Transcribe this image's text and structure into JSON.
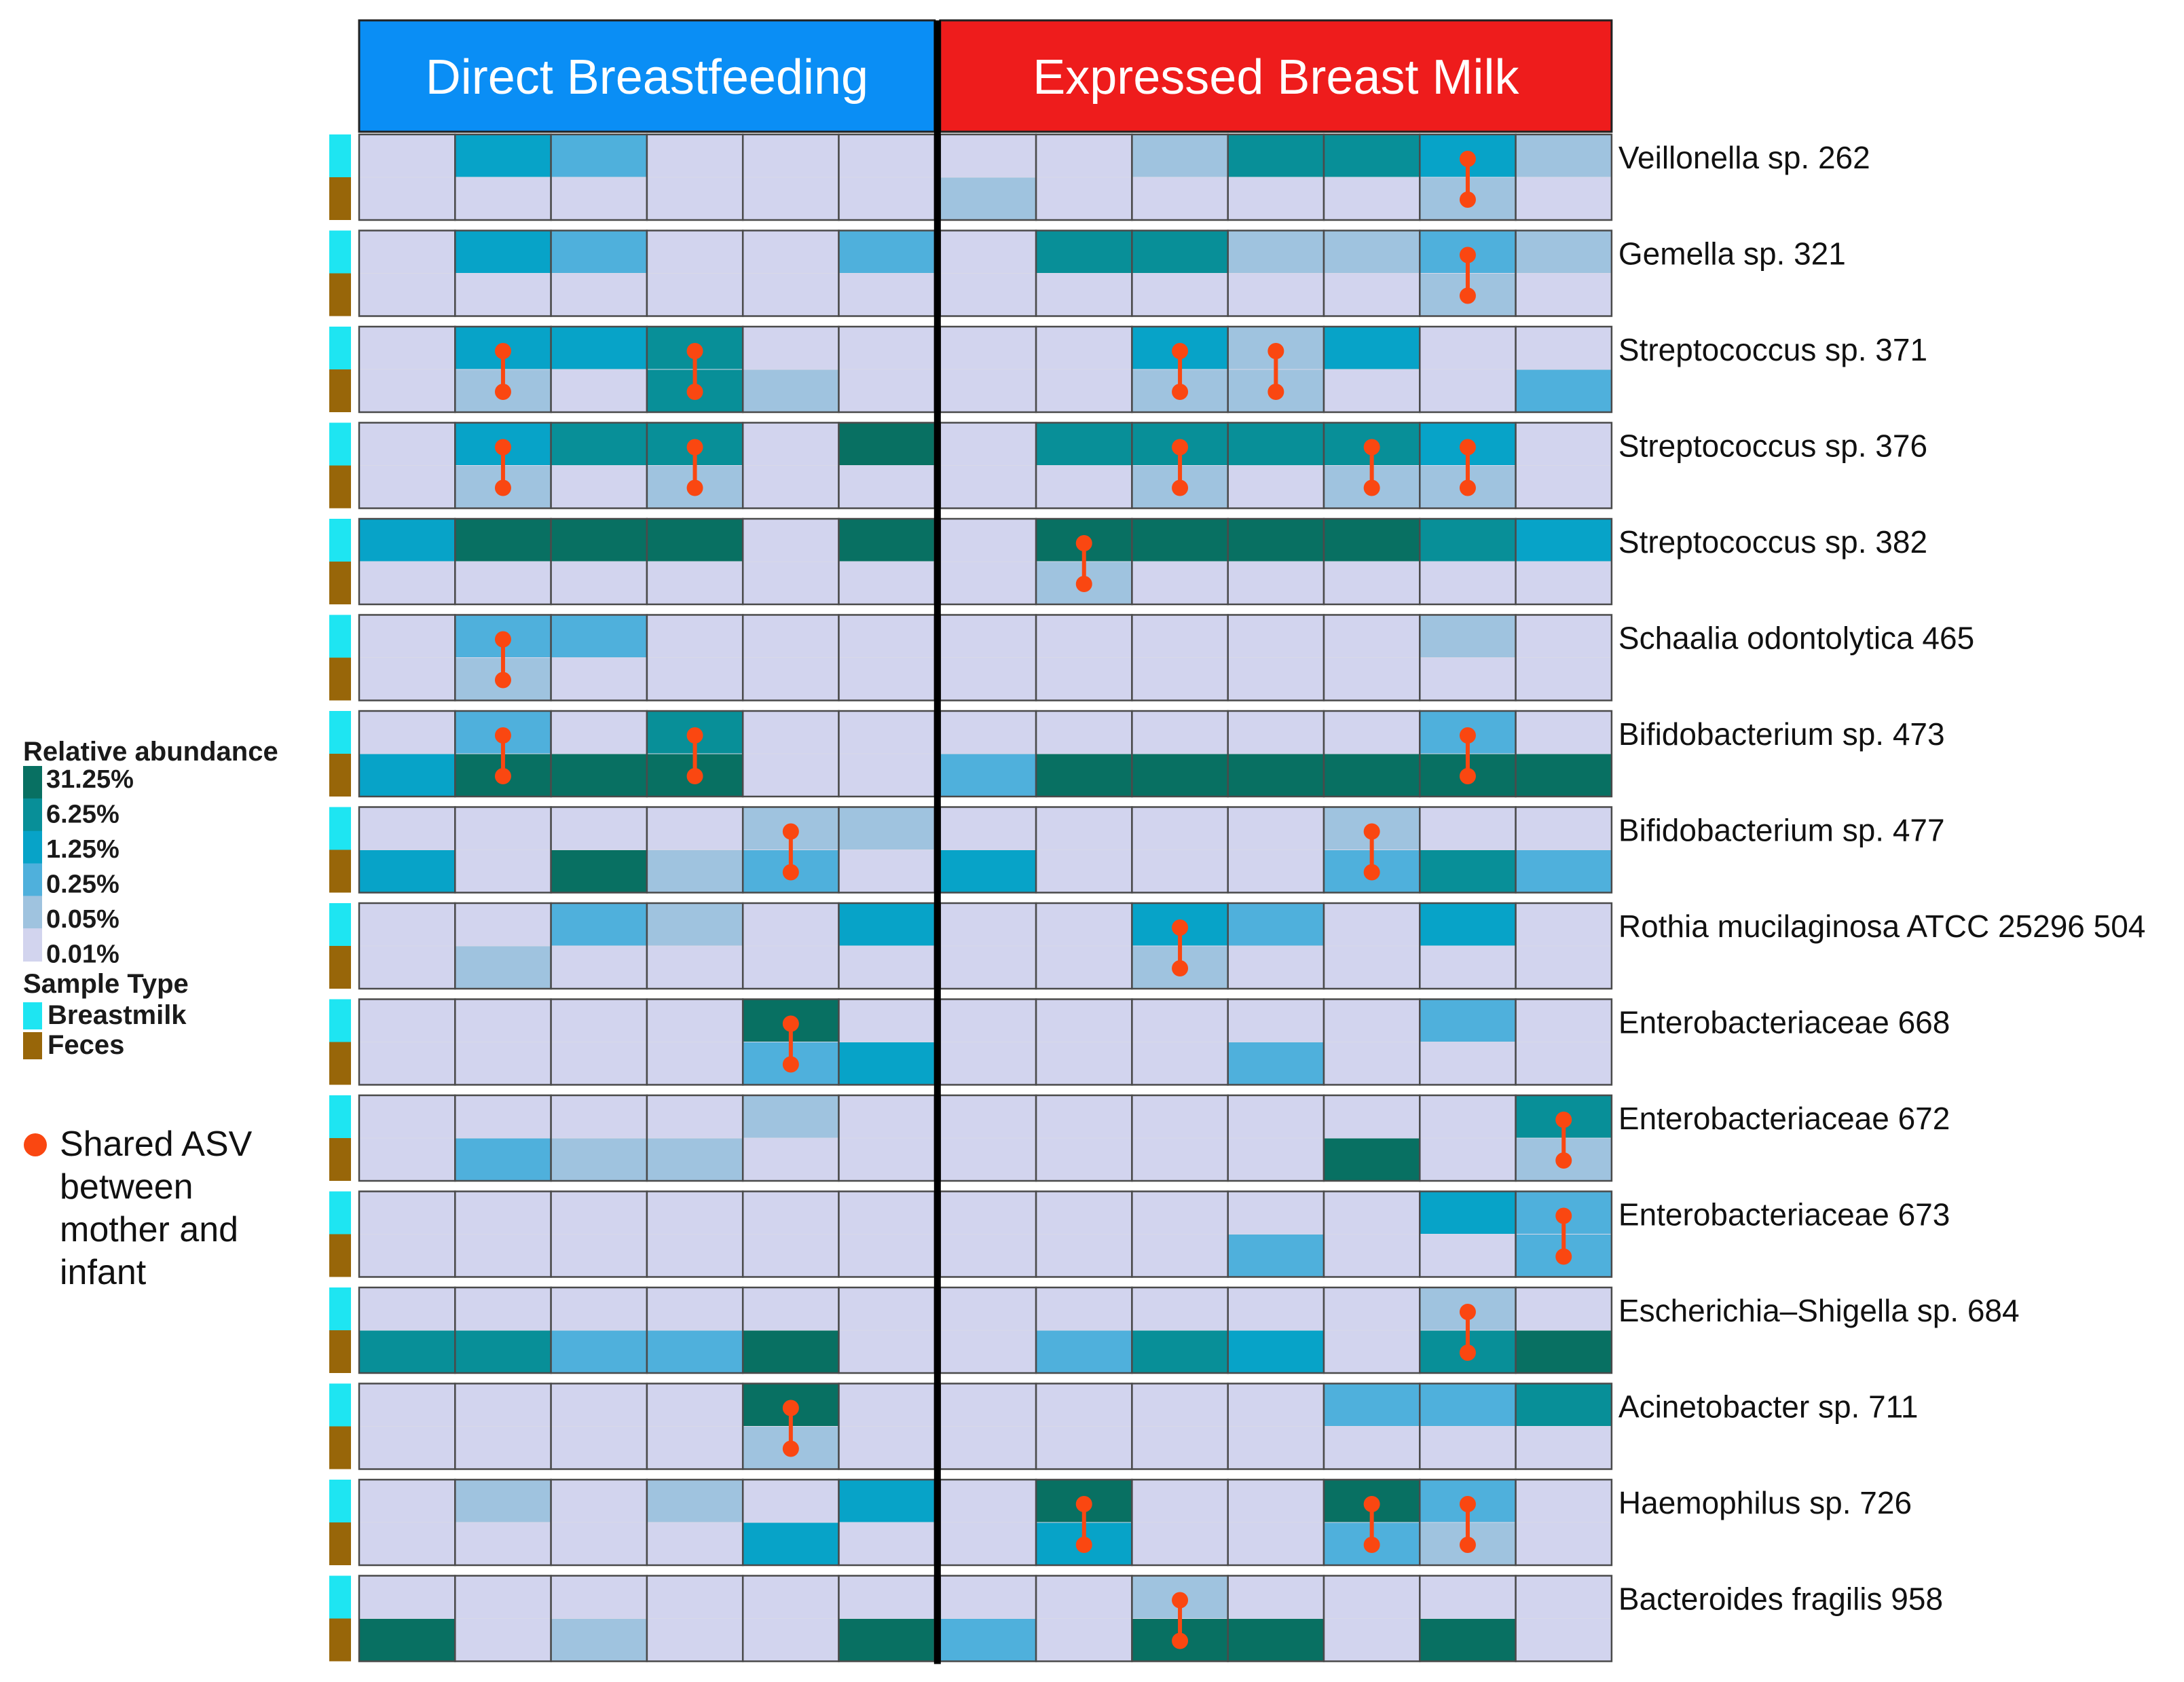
{
  "chart_data": {
    "type": "heatmap",
    "groups": [
      {
        "label": "Direct Breastfeeding",
        "columns": 6,
        "color": "#0a8ef5"
      },
      {
        "label": "Expressed Breast Milk",
        "columns": 7,
        "color": "#ee1c1c"
      }
    ],
    "sample_types": [
      "Breastmilk",
      "Feces"
    ],
    "legend": {
      "abundance_title": "Relative abundance",
      "abundance_ticks": [
        "31.25%",
        "6.25%",
        "1.25%",
        "0.25%",
        "0.05%",
        "0.01%"
      ],
      "scale_colors": [
        "#087062",
        "#088f98",
        "#07a3c8",
        "#4fb0dc",
        "#9fc3df",
        "#d2d4ee"
      ],
      "sample_title": "Sample Type",
      "sample_items": [
        {
          "label": "Breastmilk",
          "color": "#1ee5f2"
        },
        {
          "label": "Feces",
          "color": "#986609"
        }
      ],
      "shared_label_lines": [
        "Shared ASV",
        "between",
        "mother and",
        "infant"
      ],
      "shared_color": "#fa4711"
    },
    "value_scale_note": "0 = 0.01% (lowest) ... 5 = 31.25% (highest)",
    "rows": [
      {
        "taxon": "Veillonella sp. 262",
        "breastmilk": [
          0,
          3,
          2,
          0,
          0,
          0,
          0,
          0,
          1,
          4,
          4,
          3,
          1
        ],
        "feces": [
          0,
          0,
          0,
          0,
          0,
          0,
          1,
          0,
          0,
          0,
          0,
          1,
          0
        ],
        "shared": [
          11
        ]
      },
      {
        "taxon": "Gemella sp. 321",
        "breastmilk": [
          0,
          3,
          2,
          0,
          0,
          2,
          0,
          4,
          4,
          1,
          1,
          2,
          1
        ],
        "feces": [
          0,
          0,
          0,
          0,
          0,
          0,
          0,
          0,
          0,
          0,
          0,
          1,
          0
        ],
        "shared": [
          11
        ]
      },
      {
        "taxon": "Streptococcus sp. 371",
        "breastmilk": [
          0,
          3,
          3,
          4,
          0,
          0,
          0,
          0,
          3,
          1,
          3,
          0,
          0
        ],
        "feces": [
          0,
          1,
          0,
          4,
          1,
          0,
          0,
          0,
          1,
          1,
          0,
          0,
          2
        ],
        "shared": [
          1,
          3,
          8,
          9
        ]
      },
      {
        "taxon": "Streptococcus sp. 376",
        "breastmilk": [
          0,
          3,
          4,
          4,
          0,
          5,
          0,
          4,
          4,
          4,
          4,
          3,
          0
        ],
        "feces": [
          0,
          1,
          0,
          1,
          0,
          0,
          0,
          0,
          1,
          0,
          1,
          1,
          0
        ],
        "shared": [
          1,
          3,
          8,
          10,
          11
        ]
      },
      {
        "taxon": "Streptococcus sp. 382",
        "breastmilk": [
          3,
          5,
          5,
          5,
          0,
          5,
          0,
          5,
          5,
          5,
          5,
          4,
          3
        ],
        "feces": [
          0,
          0,
          0,
          0,
          0,
          0,
          0,
          1,
          0,
          0,
          0,
          0,
          0
        ],
        "shared": [
          7
        ]
      },
      {
        "taxon": "Schaalia odontolytica 465",
        "breastmilk": [
          0,
          2,
          2,
          0,
          0,
          0,
          0,
          0,
          0,
          0,
          0,
          1,
          0
        ],
        "feces": [
          0,
          1,
          0,
          0,
          0,
          0,
          0,
          0,
          0,
          0,
          0,
          0,
          0
        ],
        "shared": [
          1
        ]
      },
      {
        "taxon": "Bifidobacterium sp. 473",
        "breastmilk": [
          0,
          2,
          0,
          4,
          0,
          0,
          0,
          0,
          0,
          0,
          0,
          2,
          0
        ],
        "feces": [
          3,
          5,
          5,
          5,
          0,
          0,
          2,
          5,
          5,
          5,
          5,
          5,
          5
        ],
        "shared": [
          1,
          3,
          11
        ]
      },
      {
        "taxon": "Bifidobacterium sp. 477",
        "breastmilk": [
          0,
          0,
          0,
          0,
          1,
          1,
          0,
          0,
          0,
          0,
          1,
          0,
          0
        ],
        "feces": [
          3,
          0,
          5,
          1,
          2,
          0,
          3,
          0,
          0,
          0,
          2,
          4,
          2
        ],
        "shared": [
          4,
          10
        ]
      },
      {
        "taxon": "Rothia mucilaginosa ATCC 25296 504",
        "breastmilk": [
          0,
          0,
          2,
          1,
          0,
          3,
          0,
          0,
          3,
          2,
          0,
          3,
          0
        ],
        "feces": [
          0,
          1,
          0,
          0,
          0,
          0,
          0,
          0,
          1,
          0,
          0,
          0,
          0
        ],
        "shared": [
          8
        ]
      },
      {
        "taxon": "Enterobacteriaceae 668",
        "breastmilk": [
          0,
          0,
          0,
          0,
          5,
          0,
          0,
          0,
          0,
          0,
          0,
          2,
          0
        ],
        "feces": [
          0,
          0,
          0,
          0,
          2,
          3,
          0,
          0,
          0,
          2,
          0,
          0,
          0
        ],
        "shared": [
          4
        ]
      },
      {
        "taxon": "Enterobacteriaceae 672",
        "breastmilk": [
          0,
          0,
          0,
          0,
          1,
          0,
          0,
          0,
          0,
          0,
          0,
          0,
          4
        ],
        "feces": [
          0,
          2,
          1,
          1,
          0,
          0,
          0,
          0,
          0,
          0,
          5,
          0,
          1
        ],
        "shared": [
          12
        ]
      },
      {
        "taxon": "Enterobacteriaceae 673",
        "breastmilk": [
          0,
          0,
          0,
          0,
          0,
          0,
          0,
          0,
          0,
          0,
          0,
          3,
          2
        ],
        "feces": [
          0,
          0,
          0,
          0,
          0,
          0,
          0,
          0,
          0,
          2,
          0,
          0,
          2
        ],
        "shared": [
          12
        ]
      },
      {
        "taxon": "Escherichia–Shigella sp. 684",
        "breastmilk": [
          0,
          0,
          0,
          0,
          0,
          0,
          0,
          0,
          0,
          0,
          0,
          1,
          0
        ],
        "feces": [
          4,
          4,
          2,
          2,
          5,
          0,
          0,
          2,
          4,
          3,
          0,
          4,
          5
        ],
        "shared": [
          11
        ]
      },
      {
        "taxon": "Acinetobacter sp. 711",
        "breastmilk": [
          0,
          0,
          0,
          0,
          5,
          0,
          0,
          0,
          0,
          0,
          2,
          2,
          4
        ],
        "feces": [
          0,
          0,
          0,
          0,
          1,
          0,
          0,
          0,
          0,
          0,
          0,
          0,
          0
        ],
        "shared": [
          4
        ]
      },
      {
        "taxon": "Haemophilus sp. 726",
        "breastmilk": [
          0,
          1,
          0,
          1,
          0,
          3,
          0,
          5,
          0,
          0,
          5,
          2,
          0
        ],
        "feces": [
          0,
          0,
          0,
          0,
          3,
          0,
          0,
          3,
          0,
          0,
          2,
          1,
          0
        ],
        "shared": [
          7,
          10,
          11
        ]
      },
      {
        "taxon": "Bacteroides fragilis 958",
        "breastmilk": [
          0,
          0,
          0,
          0,
          0,
          0,
          0,
          0,
          1,
          0,
          0,
          0,
          0
        ],
        "feces": [
          5,
          0,
          1,
          0,
          0,
          5,
          2,
          0,
          5,
          5,
          0,
          5,
          0
        ],
        "shared": [
          8
        ]
      }
    ]
  }
}
